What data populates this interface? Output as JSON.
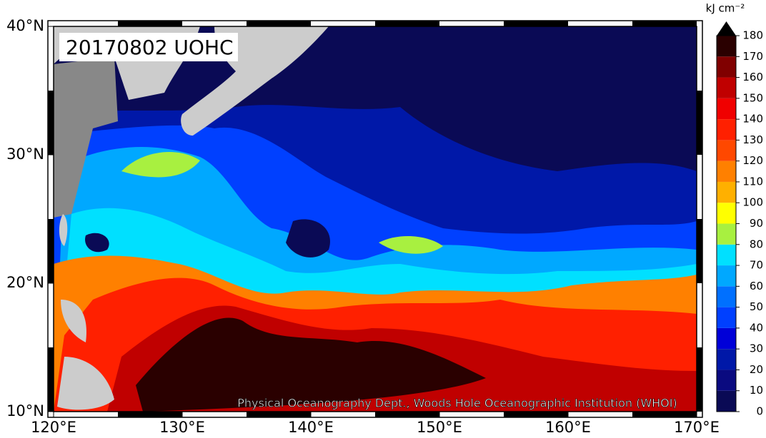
{
  "title": "20170802 UOHC",
  "credit": "Physical Oceanography Dept., Woods Hole Oceanographic Institution (WHOI)",
  "map": {
    "xlim": [
      120,
      170
    ],
    "ylim": [
      10,
      40
    ],
    "xticks": [
      {
        "value": 120,
        "label": "120°E"
      },
      {
        "value": 130,
        "label": "130°E"
      },
      {
        "value": 140,
        "label": "140°E"
      },
      {
        "value": 150,
        "label": "150°E"
      },
      {
        "value": 160,
        "label": "160°E"
      },
      {
        "value": 170,
        "label": "170°E"
      }
    ],
    "yticks": [
      {
        "value": 10,
        "label": "10°N"
      },
      {
        "value": 20,
        "label": "20°N"
      },
      {
        "value": 30,
        "label": "30°N"
      },
      {
        "value": 40,
        "label": "40°N"
      }
    ]
  },
  "colorbar": {
    "unit": "kJ cm⁻²",
    "ticks": [
      0,
      10,
      20,
      30,
      40,
      50,
      60,
      70,
      80,
      90,
      100,
      110,
      120,
      130,
      140,
      150,
      160,
      170,
      180
    ],
    "colors": [
      "#0a0a55",
      "#0a0a80",
      "#0018a8",
      "#0000d8",
      "#0040ff",
      "#0070ff",
      "#00a8ff",
      "#00e0ff",
      "#a8f040",
      "#ffff00",
      "#ffb000",
      "#ff8000",
      "#ff4800",
      "#ff2000",
      "#f00000",
      "#c00000",
      "#800000",
      "#2a0000"
    ],
    "over_color": "#000000"
  }
}
